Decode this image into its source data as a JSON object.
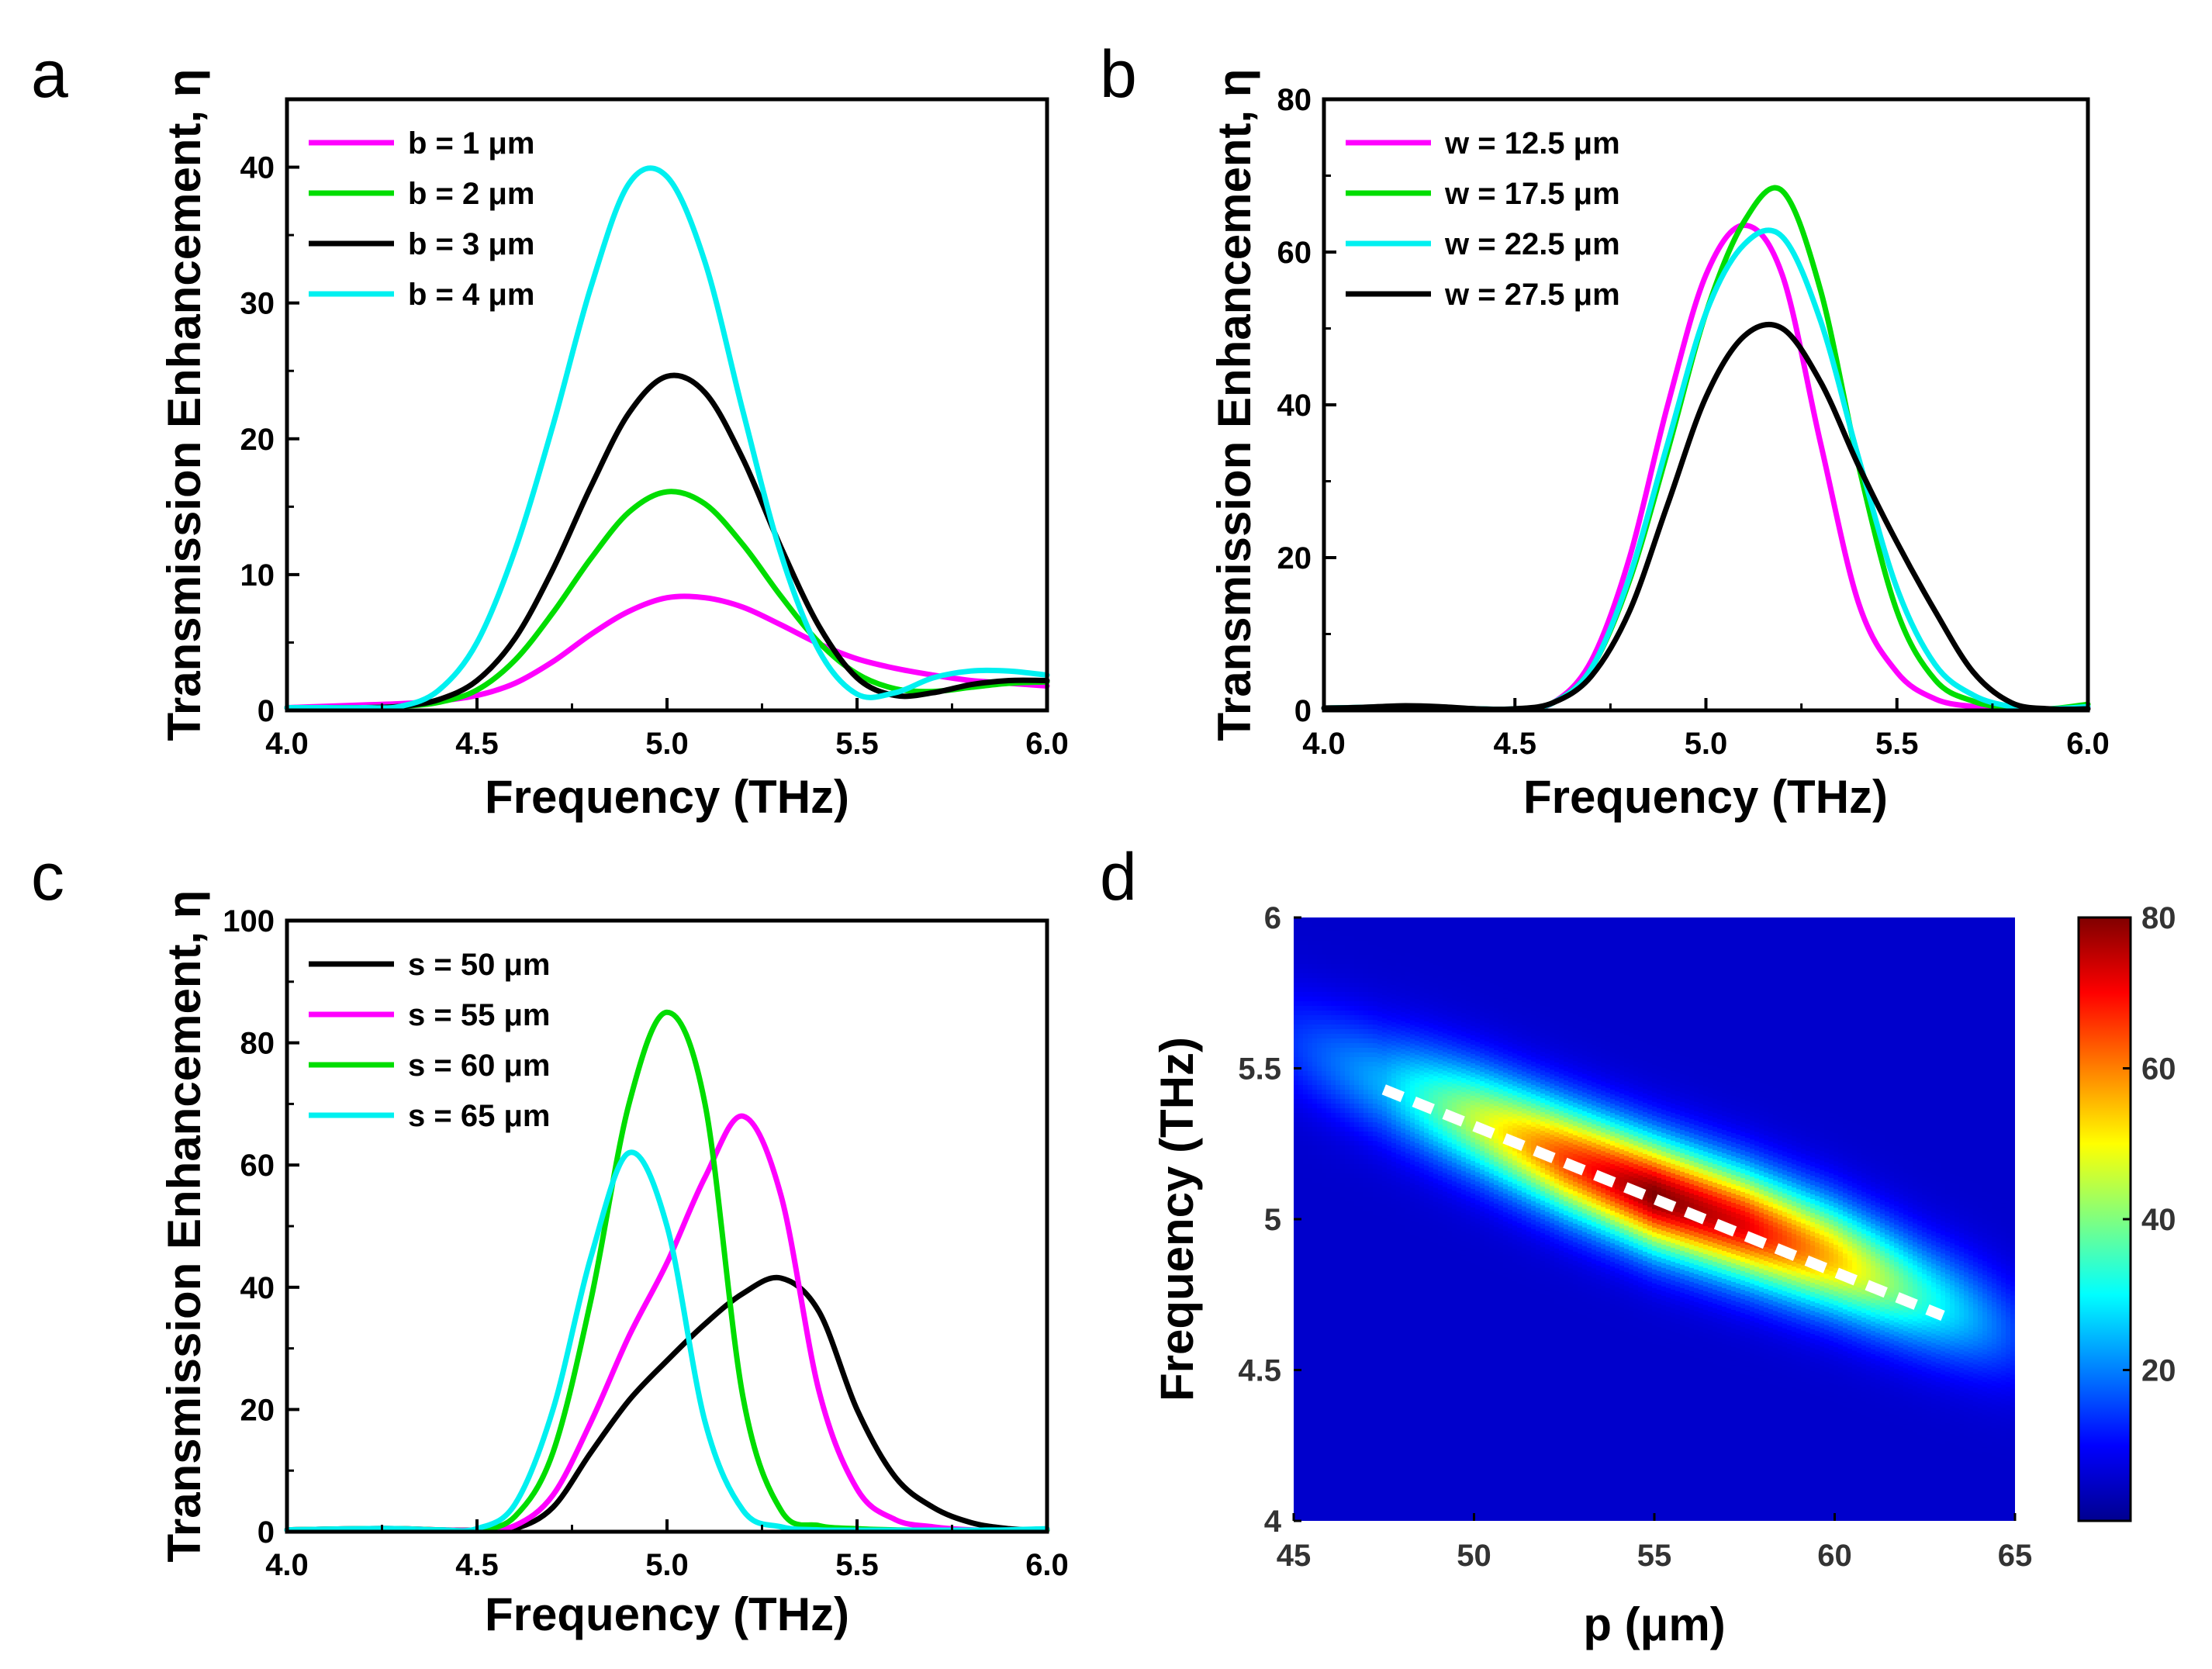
{
  "chart_data": [
    {
      "panel": "a",
      "type": "line",
      "xlabel": "Frequency (THz)",
      "ylabel": "Transmission Enhancement, η",
      "xlim": [
        4.0,
        6.0
      ],
      "ylim": [
        0,
        45
      ],
      "xticks": [
        4.0,
        4.5,
        5.0,
        5.5,
        6.0
      ],
      "xtick_labels": [
        "4.0",
        "4.5",
        "5.0",
        "5.5",
        "6.0"
      ],
      "yticks": [
        0,
        10,
        20,
        30,
        40
      ],
      "ytick_labels": [
        "0",
        "10",
        "20",
        "30",
        "40"
      ],
      "legend_position": "top-left",
      "grid": false,
      "x": [
        4.0,
        4.1,
        4.2,
        4.3,
        4.4,
        4.5,
        4.6,
        4.7,
        4.8,
        4.9,
        5.0,
        5.1,
        5.2,
        5.3,
        5.4,
        5.5,
        5.6,
        5.7,
        5.8,
        5.9,
        6.0
      ],
      "series": [
        {
          "name": "b = 1 μm",
          "color": "#ff00ff",
          "values": [
            0.2,
            0.3,
            0.4,
            0.5,
            0.7,
            1.1,
            2.0,
            3.6,
            5.6,
            7.3,
            8.3,
            8.3,
            7.6,
            6.3,
            4.9,
            3.8,
            3.1,
            2.6,
            2.2,
            2.0,
            1.8
          ]
        },
        {
          "name": "b = 2 μm",
          "color": "#00dd00",
          "values": [
            0.2,
            0.2,
            0.2,
            0.3,
            0.6,
            1.5,
            3.7,
            7.2,
            11.2,
            14.6,
            16.1,
            15.2,
            12.2,
            8.4,
            5.0,
            2.7,
            1.6,
            1.4,
            1.7,
            2.0,
            2.1
          ]
        },
        {
          "name": "b = 3 μm",
          "color": "#000000",
          "values": [
            0.2,
            0.2,
            0.2,
            0.3,
            0.8,
            2.2,
            5.3,
            10.4,
            16.5,
            21.9,
            24.6,
            23.4,
            18.5,
            12.0,
            6.2,
            2.4,
            1.1,
            1.3,
            1.9,
            2.2,
            2.2
          ]
        },
        {
          "name": "b = 4 μm",
          "color": "#00f0f0",
          "values": [
            0.2,
            0.2,
            0.2,
            0.3,
            1.5,
            5.0,
            11.8,
            21.0,
            31.2,
            38.8,
            39.3,
            33.0,
            22.0,
            11.5,
            4.4,
            1.2,
            1.3,
            2.4,
            2.9,
            2.9,
            2.6
          ]
        }
      ]
    },
    {
      "panel": "b",
      "type": "line",
      "xlabel": "Frequency (THz)",
      "ylabel": "Transmission Enhancement, η",
      "xlim": [
        4.0,
        6.0
      ],
      "ylim": [
        0,
        80
      ],
      "xticks": [
        4.0,
        4.5,
        5.0,
        5.5,
        6.0
      ],
      "xtick_labels": [
        "4.0",
        "4.5",
        "5.0",
        "5.5",
        "6.0"
      ],
      "yticks": [
        0,
        20,
        40,
        60,
        80
      ],
      "ytick_labels": [
        "0",
        "20",
        "40",
        "60",
        "80"
      ],
      "legend_position": "top-left",
      "grid": false,
      "x": [
        4.0,
        4.1,
        4.2,
        4.3,
        4.4,
        4.5,
        4.6,
        4.7,
        4.8,
        4.9,
        5.0,
        5.1,
        5.2,
        5.3,
        5.4,
        5.5,
        5.6,
        5.7,
        5.8,
        5.9,
        6.0
      ],
      "series": [
        {
          "name": "w = 12.5 μm",
          "color": "#ff00ff",
          "values": [
            0.3,
            0.4,
            0.5,
            0.4,
            0.2,
            0.2,
            1.0,
            6.5,
            20.0,
            40.0,
            57.0,
            63.5,
            57.0,
            35.0,
            14.0,
            5.0,
            1.5,
            0.5,
            0.2,
            0.2,
            0.3
          ]
        },
        {
          "name": "w = 17.5 μm",
          "color": "#00dd00",
          "values": [
            0.3,
            0.4,
            0.5,
            0.4,
            0.2,
            0.2,
            1.0,
            5.5,
            17.0,
            34.0,
            52.0,
            64.0,
            68.0,
            55.0,
            32.0,
            13.0,
            4.0,
            1.2,
            0.3,
            0.2,
            0.8
          ]
        },
        {
          "name": "w = 22.5 μm",
          "color": "#00f0f0",
          "values": [
            0.3,
            0.4,
            0.5,
            0.4,
            0.2,
            0.2,
            1.0,
            5.5,
            17.5,
            35.0,
            52.0,
            61.0,
            62.0,
            51.0,
            33.0,
            16.0,
            6.0,
            2.0,
            0.5,
            0.2,
            0.5
          ]
        },
        {
          "name": "w = 27.5 μm",
          "color": "#000000",
          "values": [
            0.3,
            0.4,
            0.6,
            0.5,
            0.2,
            0.2,
            1.0,
            4.5,
            13.0,
            27.0,
            41.0,
            49.0,
            50.0,
            43.0,
            32.0,
            22.0,
            13.0,
            5.0,
            1.0,
            0.1,
            0.2
          ]
        }
      ]
    },
    {
      "panel": "c",
      "type": "line",
      "xlabel": "Frequency (THz)",
      "ylabel": "Transmission Enhancement, η",
      "xlim": [
        4.0,
        6.0
      ],
      "ylim": [
        0,
        100
      ],
      "xticks": [
        4.0,
        4.5,
        5.0,
        5.5,
        6.0
      ],
      "xtick_labels": [
        "4.0",
        "4.5",
        "5.0",
        "5.5",
        "6.0"
      ],
      "yticks": [
        0,
        20,
        40,
        60,
        80,
        100
      ],
      "ytick_labels": [
        "0",
        "20",
        "40",
        "60",
        "80",
        "100"
      ],
      "legend_position": "top-left",
      "grid": false,
      "x": [
        4.0,
        4.1,
        4.2,
        4.3,
        4.4,
        4.5,
        4.6,
        4.7,
        4.8,
        4.9,
        5.0,
        5.1,
        5.2,
        5.3,
        5.4,
        5.5,
        5.6,
        5.7,
        5.8,
        5.9,
        6.0
      ],
      "series": [
        {
          "name": "s = 50 μm",
          "color": "#000000",
          "values": [
            0.3,
            0.4,
            0.5,
            0.5,
            0.3,
            0.2,
            0.5,
            4.0,
            13.0,
            21.5,
            28.0,
            34.0,
            39.0,
            41.5,
            36.0,
            20.0,
            9.0,
            4.0,
            1.5,
            0.5,
            0.2
          ]
        },
        {
          "name": "s = 55 μm",
          "color": "#ff00ff",
          "values": [
            0.3,
            0.4,
            0.5,
            0.5,
            0.3,
            0.2,
            1.0,
            6.0,
            18.0,
            32.0,
            44.0,
            58.0,
            68.0,
            55.0,
            23.0,
            7.0,
            2.0,
            0.8,
            0.3,
            0.2,
            0.2
          ]
        },
        {
          "name": "s = 60 μm",
          "color": "#00dd00",
          "values": [
            0.3,
            0.4,
            0.5,
            0.5,
            0.3,
            0.3,
            2.5,
            13.0,
            38.0,
            70.0,
            85.0,
            70.0,
            22.0,
            3.5,
            1.0,
            0.5,
            0.3,
            0.2,
            0.2,
            0.2,
            0.3
          ]
        },
        {
          "name": "s = 65 μm",
          "color": "#00f0f0",
          "values": [
            0.3,
            0.4,
            0.5,
            0.5,
            0.3,
            0.5,
            4.5,
            20.0,
            45.0,
            62.0,
            50.0,
            18.0,
            3.5,
            0.8,
            0.3,
            0.2,
            0.2,
            0.2,
            0.2,
            0.3,
            0.5
          ]
        }
      ]
    },
    {
      "panel": "d",
      "type": "heatmap",
      "xlabel": "p (μm)",
      "ylabel": "Frequency (THz)",
      "xlim": [
        45,
        65
      ],
      "ylim": [
        4,
        6
      ],
      "xticks": [
        45,
        50,
        55,
        60,
        65
      ],
      "xtick_labels": [
        "45",
        "50",
        "55",
        "60",
        "65"
      ],
      "yticks": [
        4,
        4.5,
        5,
        5.5,
        6
      ],
      "ytick_labels": [
        "4",
        "4.5",
        "5",
        "5.5",
        "6"
      ],
      "colorbar": {
        "range": [
          0,
          80
        ],
        "ticks": [
          20,
          40,
          60,
          80
        ],
        "tick_labels": [
          "20",
          "40",
          "60",
          "80"
        ],
        "colormap": "jet"
      },
      "peak_ridge": [
        {
          "p": 45,
          "f": 5.58,
          "value": 14
        },
        {
          "p": 47.5,
          "f": 5.45,
          "value": 24
        },
        {
          "p": 50,
          "f": 5.33,
          "value": 45
        },
        {
          "p": 52.5,
          "f": 5.2,
          "value": 65
        },
        {
          "p": 55,
          "f": 5.08,
          "value": 80
        },
        {
          "p": 57.5,
          "f": 4.98,
          "value": 72
        },
        {
          "p": 60,
          "f": 4.87,
          "value": 55
        },
        {
          "p": 62.5,
          "f": 4.74,
          "value": 33
        },
        {
          "p": 65,
          "f": 4.62,
          "value": 15
        }
      ],
      "ridge_width_thz": 0.18,
      "background_value": 6,
      "dashed_line": {
        "color": "#ffffff",
        "p": [
          47.5,
          63
        ],
        "f": [
          5.43,
          4.68
        ]
      }
    }
  ],
  "panel_letters": [
    "a",
    "b",
    "c",
    "d"
  ]
}
